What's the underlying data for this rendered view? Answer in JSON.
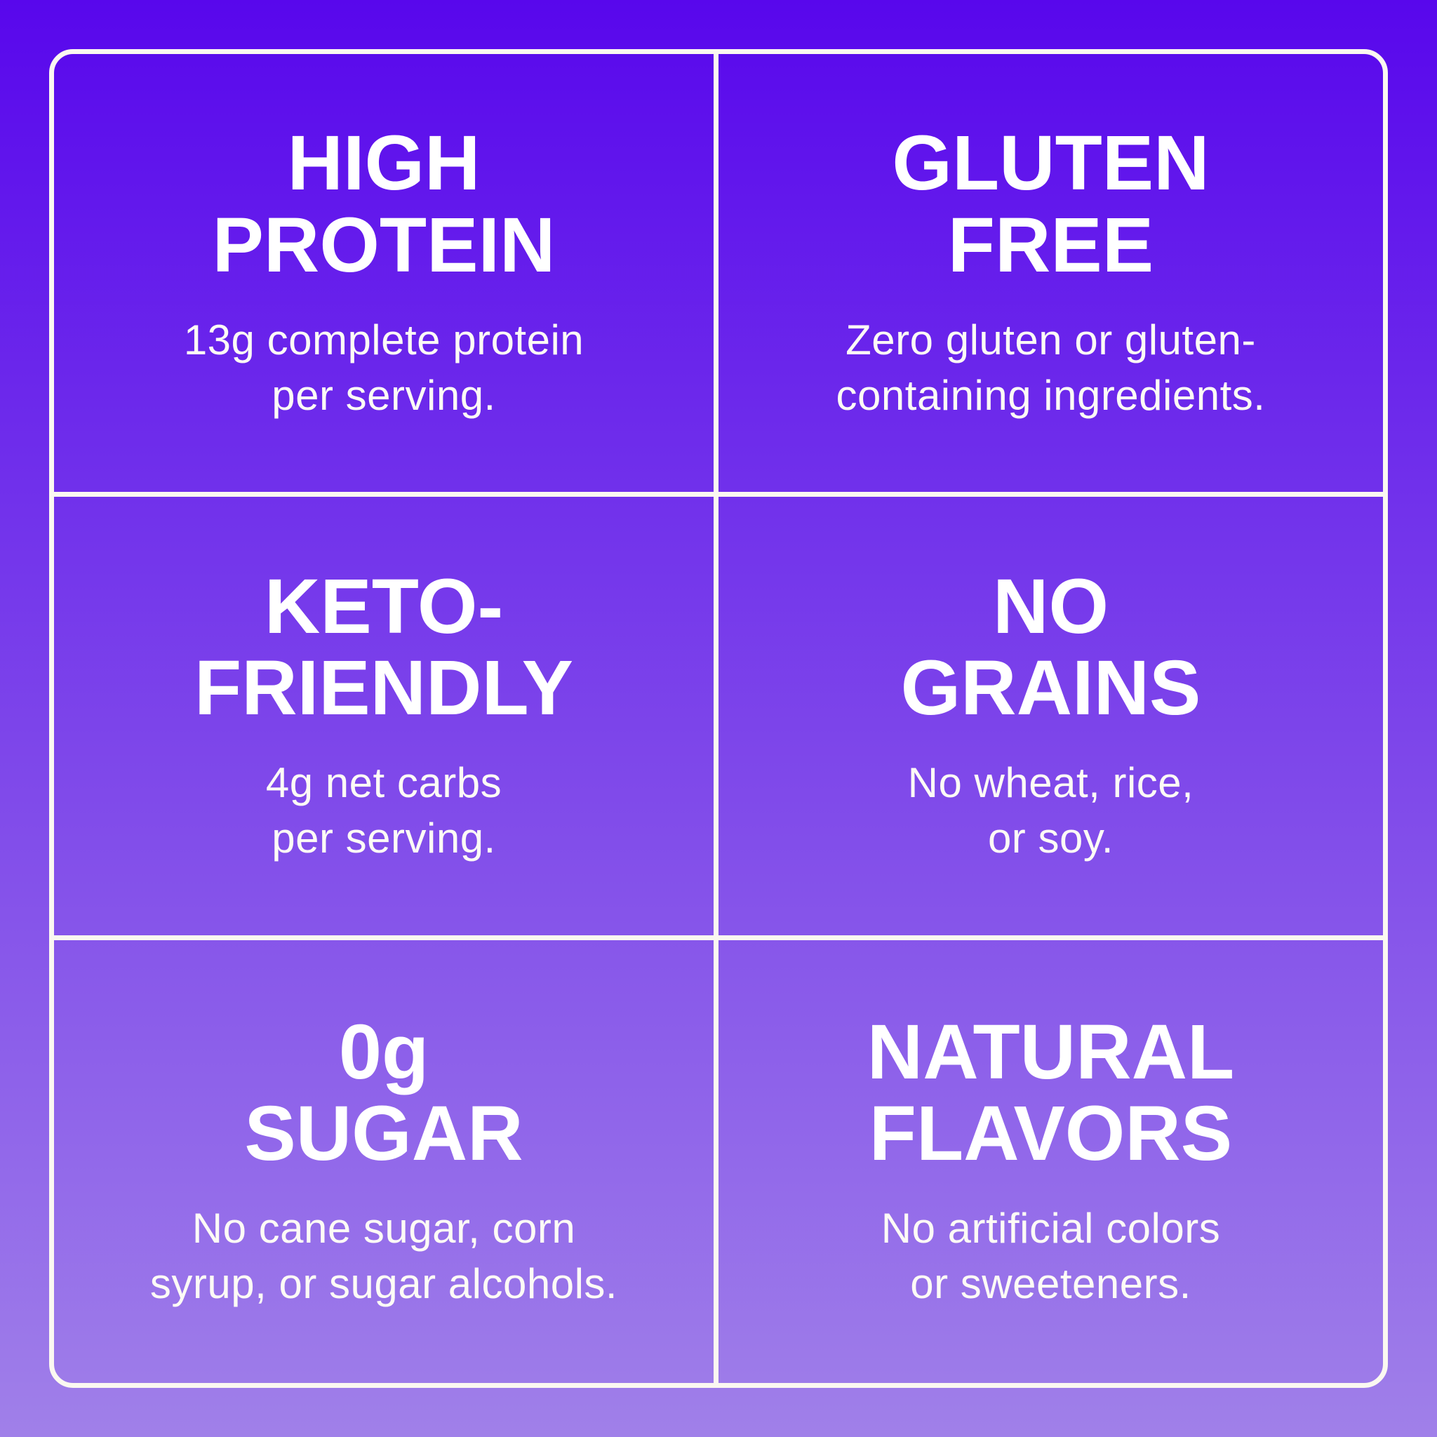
{
  "style": {
    "background_top_color": "#5807EC",
    "background_bottom_color": "#A080E9",
    "grid_line_color": "#FBF8F1",
    "title_text_color": "#FFFFFF",
    "body_text_color": "#FDFBF6"
  },
  "cells": [
    {
      "id": "high-protein",
      "title_lines": [
        "HIGH",
        "PROTEIN"
      ],
      "body_lines": [
        "13g complete protein",
        "per serving."
      ]
    },
    {
      "id": "gluten-free",
      "title_lines": [
        "GLUTEN",
        "FREE"
      ],
      "body_lines": [
        "Zero gluten or gluten-",
        "containing ingredients."
      ]
    },
    {
      "id": "keto-friendly",
      "title_lines": [
        "KETO-",
        "FRIENDLY"
      ],
      "body_lines": [
        "4g net carbs",
        "per serving."
      ]
    },
    {
      "id": "no-grains",
      "title_lines": [
        "NO",
        "GRAINS"
      ],
      "body_lines": [
        "No wheat, rice,",
        "or soy."
      ]
    },
    {
      "id": "zero-sugar",
      "title_lines": [
        "0g",
        "SUGAR"
      ],
      "body_lines": [
        "No cane sugar, corn",
        "syrup, or sugar alcohols."
      ]
    },
    {
      "id": "natural-flavors",
      "title_lines": [
        "NATURAL",
        "FLAVORS"
      ],
      "body_lines": [
        "No artificial colors",
        "or sweeteners."
      ]
    }
  ]
}
